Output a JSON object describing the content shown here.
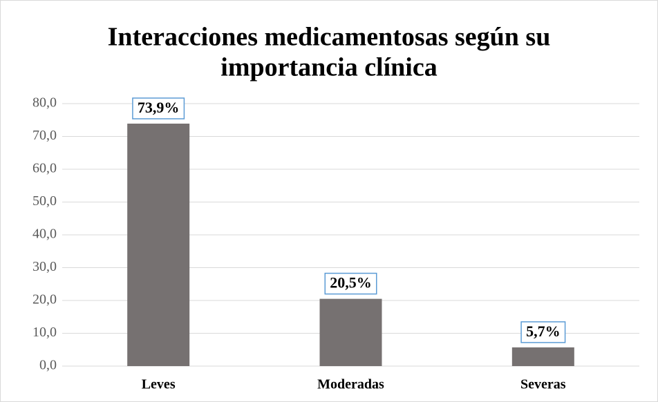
{
  "chart_data": {
    "type": "bar",
    "title": [
      "Interacciones medicamentosas según su",
      "importancia clínica"
    ],
    "categories": [
      "Leves",
      "Moderadas",
      "Severas"
    ],
    "values": [
      73.9,
      20.5,
      5.7
    ],
    "value_labels": [
      "73,9%",
      "20,5%",
      "5,7%"
    ],
    "color": "#767171",
    "ylim": [
      0,
      80
    ],
    "yticks": [
      {
        "value": 0,
        "label": "0,0"
      },
      {
        "value": 10,
        "label": "10,0"
      },
      {
        "value": 20,
        "label": "20,0"
      },
      {
        "value": 30,
        "label": "30,0"
      },
      {
        "value": 40,
        "label": "40,0"
      },
      {
        "value": 50,
        "label": "50,0"
      },
      {
        "value": 60,
        "label": "60,0"
      },
      {
        "value": 70,
        "label": "70,0"
      },
      {
        "value": 80,
        "label": "80,0"
      }
    ],
    "grid": true
  }
}
